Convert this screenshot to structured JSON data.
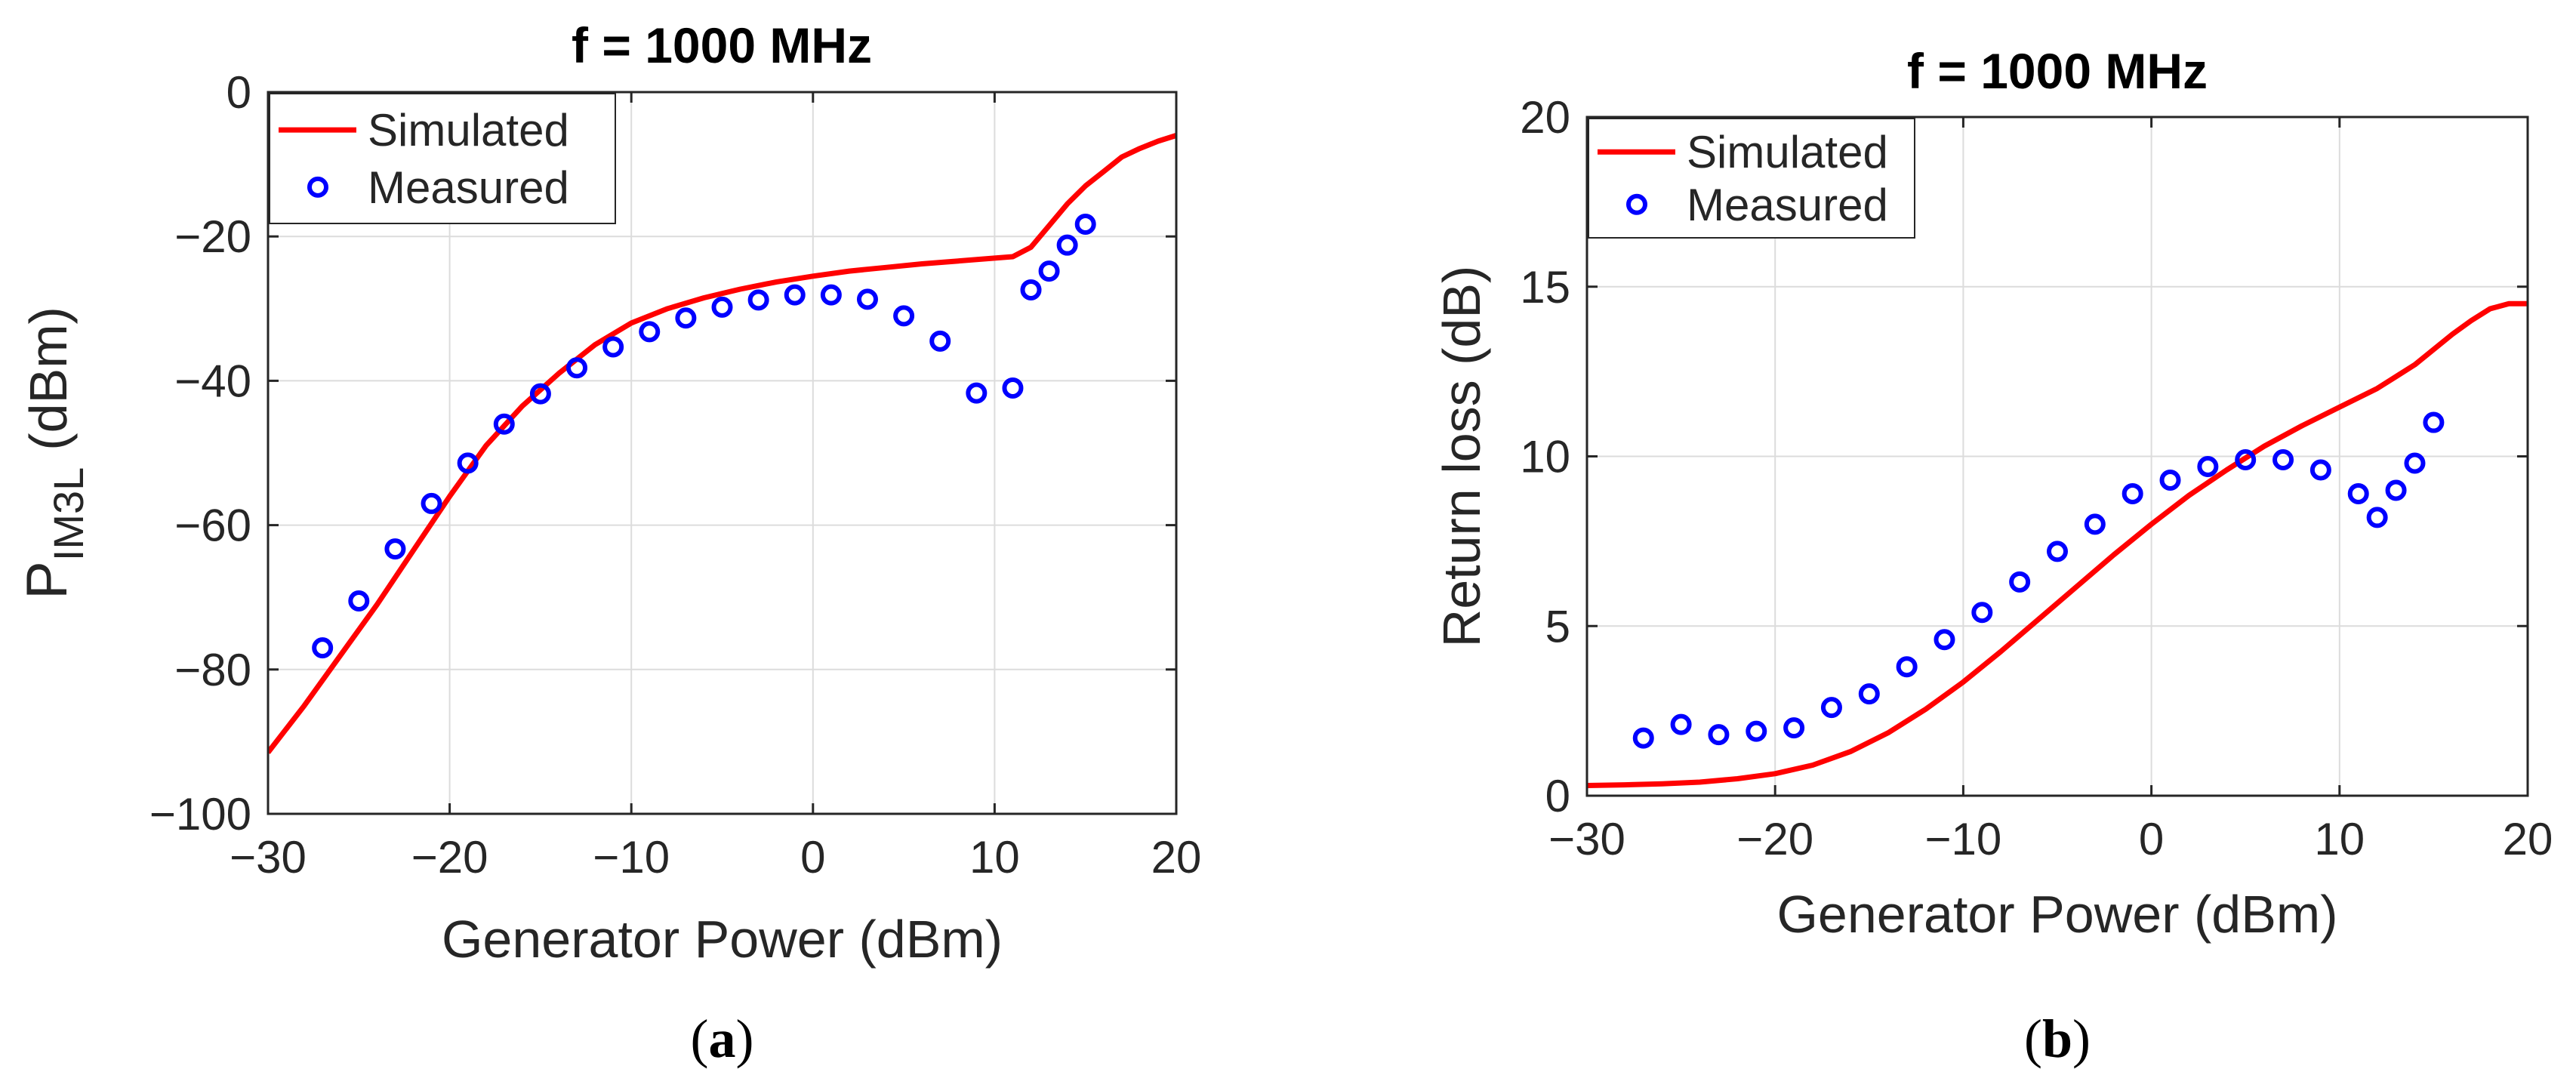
{
  "colors": {
    "simulated": "#ff0000",
    "measured": "#0000ff"
  },
  "chart_data": [
    {
      "id": "a",
      "type": "line",
      "title": "f = 1000 MHz",
      "xlabel": "Generator Power (dBm)",
      "ylabel_main": "P",
      "ylabel_sub": "IM3L",
      "ylabel_unit": "(dBm)",
      "xlim": [
        -30,
        20
      ],
      "ylim": [
        -100,
        0
      ],
      "xticks": [
        -30,
        -20,
        -10,
        0,
        10,
        20
      ],
      "yticks": [
        -100,
        -80,
        -60,
        -40,
        -20,
        0
      ],
      "xtick_labels": [
        "−30",
        "−20",
        "−10",
        "0",
        "10",
        "20"
      ],
      "ytick_labels": [
        "−100",
        "−80",
        "−60",
        "−40",
        "−20",
        "0"
      ],
      "grid": true,
      "legend_position": "top-left",
      "caption_open": "(",
      "caption_letter": "a",
      "caption_close": ")",
      "series": [
        {
          "name": "Simulated",
          "style": "line",
          "x": [
            -30,
            -28,
            -26,
            -24,
            -22,
            -20,
            -18,
            -16,
            -14,
            -12,
            -10,
            -8,
            -6,
            -4,
            -2,
            0,
            2,
            4,
            6,
            8,
            10,
            11,
            12,
            13,
            14,
            15,
            16,
            17,
            18,
            19,
            20
          ],
          "y": [
            -91.5,
            -85,
            -78,
            -71,
            -63.5,
            -56,
            -49,
            -43.5,
            -39,
            -35,
            -32,
            -30,
            -28.5,
            -27.3,
            -26.3,
            -25.5,
            -24.8,
            -24.3,
            -23.8,
            -23.4,
            -23,
            -22.8,
            -21.5,
            -18.5,
            -15.5,
            -13,
            -11,
            -9,
            -7.8,
            -6.8,
            -6
          ]
        },
        {
          "name": "Measured",
          "style": "marker",
          "x": [
            -27,
            -25,
            -23,
            -21,
            -19,
            -17,
            -15,
            -13,
            -11,
            -9,
            -7,
            -5,
            -3,
            -1,
            1,
            3,
            5,
            7,
            9,
            11,
            12,
            13,
            14,
            15
          ],
          "y": [
            -77,
            -70.5,
            -63.3,
            -57,
            -51.4,
            -46,
            -41.8,
            -38.2,
            -35.3,
            -33.2,
            -31.3,
            -29.8,
            -28.8,
            -28.1,
            -28.1,
            -28.7,
            -31,
            -34.5,
            -41.7,
            -41,
            -27.4,
            -24.8,
            -21.2,
            -18.3
          ]
        }
      ]
    },
    {
      "id": "b",
      "type": "line",
      "title": "f = 1000 MHz",
      "xlabel": "Generator Power (dBm)",
      "ylabel": "Return loss (dB)",
      "xlim": [
        -30,
        20
      ],
      "ylim": [
        0,
        20
      ],
      "xticks": [
        -30,
        -20,
        -10,
        0,
        10,
        20
      ],
      "yticks": [
        0,
        5,
        10,
        15,
        20
      ],
      "xtick_labels": [
        "−30",
        "−20",
        "−10",
        "0",
        "10",
        "20"
      ],
      "ytick_labels": [
        "0",
        "5",
        "10",
        "15",
        "20"
      ],
      "grid": true,
      "legend_position": "top-left",
      "caption_open": "(",
      "caption_letter": "b",
      "caption_close": ")",
      "series": [
        {
          "name": "Simulated",
          "style": "line",
          "x": [
            -30,
            -28,
            -26,
            -24,
            -22,
            -20,
            -18,
            -16,
            -14,
            -12,
            -10,
            -8,
            -6,
            -4,
            -2,
            0,
            2,
            4,
            6,
            8,
            10,
            12,
            14,
            16,
            17,
            18,
            19,
            20
          ],
          "y": [
            0.3,
            0.32,
            0.35,
            0.4,
            0.5,
            0.65,
            0.9,
            1.3,
            1.85,
            2.55,
            3.35,
            4.25,
            5.2,
            6.15,
            7.1,
            8.0,
            8.85,
            9.6,
            10.3,
            10.9,
            11.45,
            12.0,
            12.7,
            13.6,
            14.0,
            14.35,
            14.5,
            14.5
          ]
        },
        {
          "name": "Measured",
          "style": "marker",
          "x": [
            -27,
            -25,
            -23,
            -21,
            -19,
            -17,
            -15,
            -13,
            -11,
            -9,
            -7,
            -5,
            -3,
            -1,
            1,
            3,
            5,
            7,
            9,
            11,
            12,
            13,
            14,
            15
          ],
          "y": [
            1.7,
            2.1,
            1.8,
            1.9,
            2.0,
            2.6,
            3.0,
            3.8,
            4.6,
            5.4,
            6.3,
            7.2,
            8.0,
            8.9,
            9.3,
            9.7,
            9.9,
            9.9,
            9.6,
            8.9,
            8.2,
            9.0,
            9.8,
            11.0
          ]
        }
      ]
    }
  ]
}
